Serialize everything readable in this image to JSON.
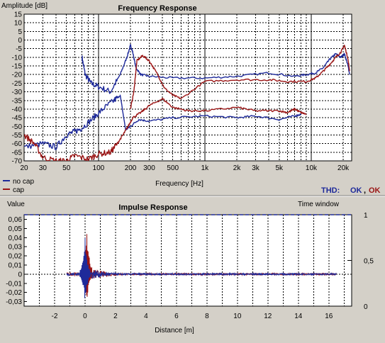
{
  "colors": {
    "background": "#d4d0c8",
    "plot_bg": "#ffffff",
    "no_cap": "#1e2a9a",
    "cap": "#9a1414",
    "thd_no_cap": "#1e2a9a",
    "thd_cap": "#9a1414"
  },
  "thd": {
    "label": "THD:",
    "values": [
      "OK",
      "OK"
    ],
    "separator": ","
  },
  "chart_data": [
    {
      "type": "line",
      "title": "Frequency Response",
      "xlabel": "Frequency [Hz]",
      "ylabel": "Amplitude [dB]",
      "xscale": "log",
      "xlim": [
        20,
        24000
      ],
      "ylim": [
        -70,
        15
      ],
      "xticks": [
        20,
        30,
        50,
        100,
        200,
        300,
        500,
        1000,
        2000,
        3000,
        5000,
        10000,
        20000
      ],
      "xtick_labels": [
        "20",
        "30",
        "50",
        "100",
        "200",
        "300",
        "500",
        "1k",
        "2k",
        "3k",
        "5k",
        "10k",
        "20k"
      ],
      "yticks": [
        15,
        10,
        5,
        0,
        -5,
        -10,
        -15,
        -20,
        -25,
        -30,
        -35,
        -40,
        -45,
        -50,
        -55,
        -60,
        -65,
        -70
      ],
      "ytick_labels": [
        "15",
        "10",
        "5",
        "0",
        "-5",
        "-10",
        "-15",
        "-20",
        "-25",
        "-30",
        "-35",
        "-40",
        "-45",
        "-50",
        "-55",
        "-60",
        "-65",
        "-70"
      ],
      "grid": true,
      "legend": "bottom-left",
      "series": [
        {
          "name": "no cap",
          "color": "#1e2a9a",
          "points": [
            [
              70,
              -10
            ],
            [
              75,
              -20
            ],
            [
              85,
              -25
            ],
            [
              100,
              -27
            ],
            [
              130,
              -30
            ],
            [
              160,
              -20
            ],
            [
              185,
              -10
            ],
            [
              200,
              -3
            ],
            [
              210,
              -7
            ],
            [
              225,
              -16
            ],
            [
              250,
              -20
            ],
            [
              300,
              -21
            ],
            [
              500,
              -22
            ],
            [
              1000,
              -22
            ],
            [
              2000,
              -21
            ],
            [
              4000,
              -19
            ],
            [
              7000,
              -21
            ],
            [
              9000,
              -20
            ],
            [
              11000,
              -19
            ],
            [
              13000,
              -16
            ],
            [
              15000,
              -11
            ],
            [
              17000,
              -8
            ],
            [
              19000,
              -10
            ],
            [
              20500,
              -8
            ],
            [
              22000,
              -14
            ],
            [
              23000,
              -20
            ]
          ]
        },
        {
          "name": "no cap",
          "color": "#1e2a9a",
          "points": [
            [
              20,
              -62
            ],
            [
              30,
              -60
            ],
            [
              40,
              -62
            ],
            [
              50,
              -55
            ],
            [
              60,
              -53
            ],
            [
              70,
              -51
            ],
            [
              90,
              -45
            ],
            [
              110,
              -40
            ],
            [
              140,
              -35
            ],
            [
              160,
              -32
            ],
            [
              180,
              -52
            ],
            [
              200,
              -50
            ],
            [
              240,
              -46
            ],
            [
              300,
              -47
            ],
            [
              500,
              -45
            ],
            [
              1000,
              -44
            ],
            [
              2000,
              -45
            ],
            [
              3000,
              -44
            ],
            [
              5000,
              -46
            ],
            [
              7000,
              -44
            ],
            [
              8000,
              -43
            ]
          ]
        },
        {
          "name": "cap",
          "color": "#9a1414",
          "points": [
            [
              200,
              -40
            ],
            [
              215,
              -30
            ],
            [
              230,
              -12
            ],
            [
              260,
              -9
            ],
            [
              300,
              -12
            ],
            [
              360,
              -20
            ],
            [
              420,
              -28
            ],
            [
              500,
              -32
            ],
            [
              600,
              -34
            ],
            [
              1000,
              -24
            ],
            [
              2000,
              -23
            ],
            [
              4000,
              -23
            ],
            [
              6000,
              -24
            ],
            [
              9000,
              -24
            ],
            [
              11000,
              -22
            ],
            [
              13000,
              -18
            ],
            [
              15000,
              -14
            ],
            [
              17000,
              -10
            ],
            [
              19000,
              -7
            ],
            [
              20500,
              -3
            ],
            [
              22000,
              -10
            ],
            [
              23000,
              -18
            ]
          ]
        },
        {
          "name": "cap",
          "color": "#9a1414",
          "points": [
            [
              20,
              -55
            ],
            [
              25,
              -60
            ],
            [
              30,
              -68
            ],
            [
              40,
              -70
            ],
            [
              50,
              -70
            ],
            [
              60,
              -67
            ],
            [
              80,
              -69
            ],
            [
              100,
              -66
            ],
            [
              130,
              -65
            ],
            [
              150,
              -60
            ],
            [
              170,
              -55
            ],
            [
              190,
              -50
            ],
            [
              210,
              -45
            ],
            [
              250,
              -42
            ],
            [
              300,
              -38
            ],
            [
              400,
              -34
            ],
            [
              500,
              -39
            ],
            [
              700,
              -41
            ],
            [
              1000,
              -41
            ],
            [
              2000,
              -39
            ],
            [
              3000,
              -41
            ],
            [
              5000,
              -41
            ],
            [
              6000,
              -42
            ],
            [
              7000,
              -40
            ],
            [
              8000,
              -42
            ],
            [
              9000,
              -43
            ]
          ]
        }
      ]
    },
    {
      "type": "line",
      "title": "Impulse Response",
      "xlabel": "Distance [m]",
      "ylabel": "Value",
      "y2label": "Time window",
      "xlim": [
        -4,
        17.5
      ],
      "ylim": [
        -0.035,
        0.065
      ],
      "y2lim": [
        0,
        1
      ],
      "xticks": [
        -2,
        0,
        2,
        4,
        6,
        8,
        10,
        12,
        14,
        16
      ],
      "xtick_labels": [
        "-2",
        "0",
        "2",
        "4",
        "6",
        "8",
        "10",
        "12",
        "14",
        "16"
      ],
      "yticks": [
        0.06,
        0.05,
        0.04,
        0.03,
        0.02,
        0.01,
        0,
        -0.01,
        -0.02,
        -0.03
      ],
      "ytick_labels": [
        "0,06",
        "0,05",
        "0,04",
        "0,03",
        "0,02",
        "0,01",
        "0",
        "-0,01",
        "-0,02",
        "-0,03"
      ],
      "y2ticks": [
        1,
        0.5,
        0
      ],
      "y2tick_labels": [
        "1",
        "0,5",
        "0"
      ],
      "grid": true,
      "series": [
        {
          "name": "cap",
          "color": "#9a1414",
          "peak": 0.058,
          "trough": -0.034,
          "peak_x": 0.1
        },
        {
          "name": "no cap",
          "color": "#1e2a9a",
          "peak": 0.04,
          "trough": -0.03,
          "peak_x": 0.0
        }
      ],
      "time_window": [
        [
          -4,
          1
        ],
        [
          17.5,
          1
        ]
      ]
    }
  ]
}
